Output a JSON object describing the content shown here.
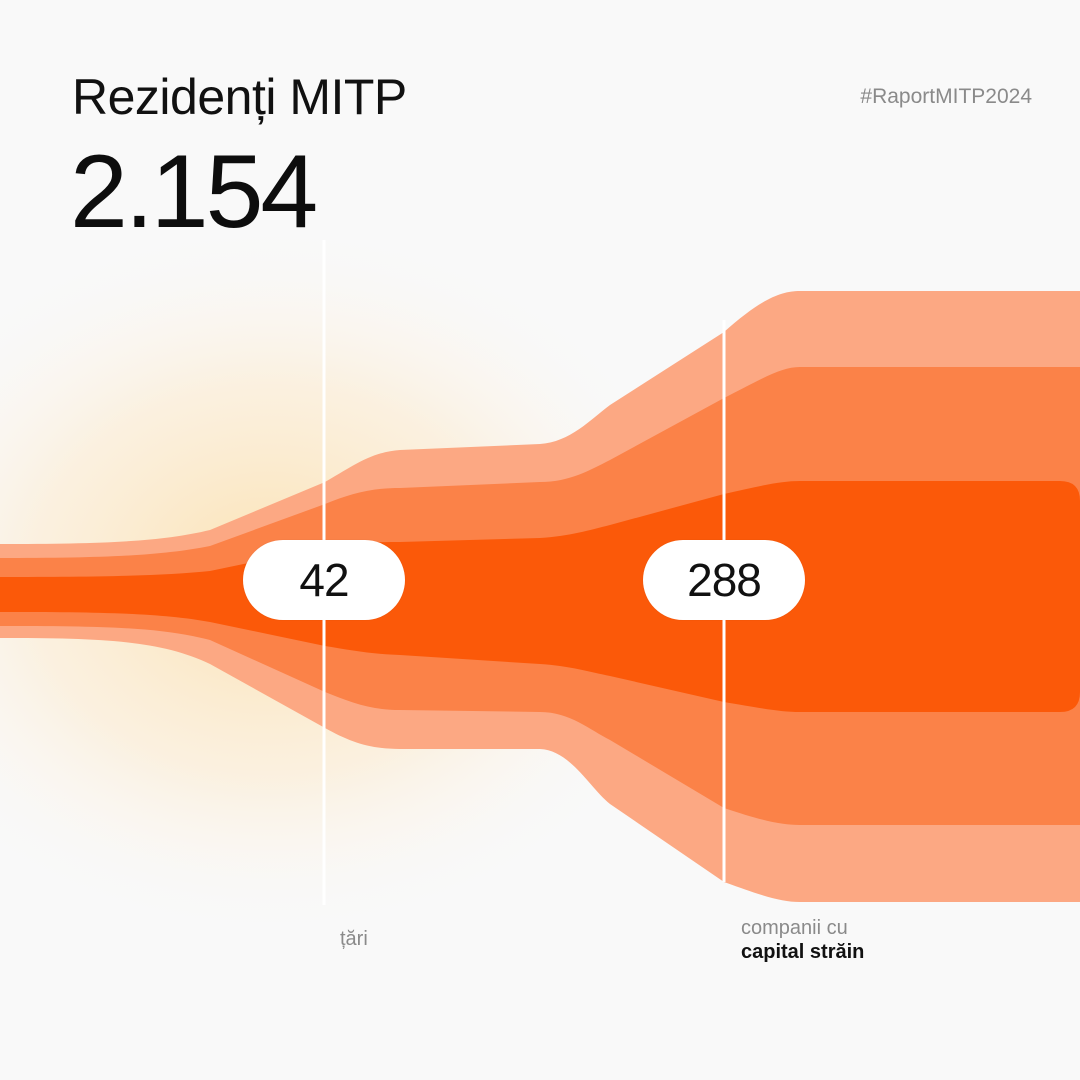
{
  "header": {
    "title": "Rezidenți MITP",
    "total": "2.154",
    "hashtag": "#RaportMITP2024"
  },
  "markers": [
    {
      "value": "42",
      "label_line1": "țări",
      "label_line2": ""
    },
    {
      "value": "288",
      "label_line1": "companii cu",
      "label_line2": "capital străin"
    }
  ],
  "colors": {
    "background": "#f9f9f9",
    "glow": "#fbe3b8",
    "band_light": "#fca883",
    "band_mid": "#fb8248",
    "band_core": "#fb5909",
    "divider": "#ffffff"
  }
}
